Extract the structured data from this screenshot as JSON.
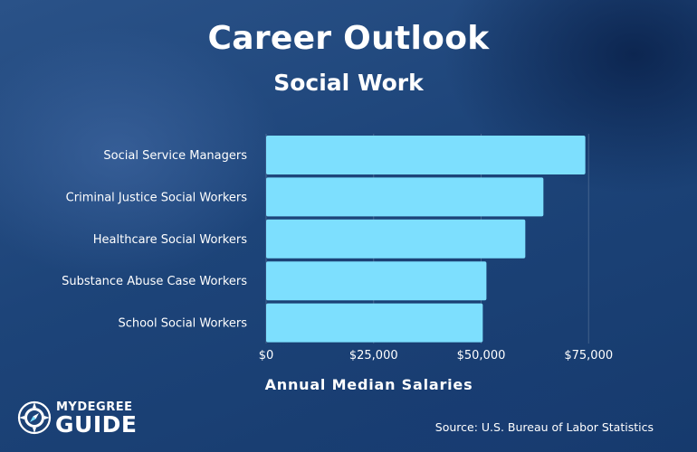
{
  "chart_data": {
    "type": "bar",
    "orientation": "horizontal",
    "title": "Career Outlook",
    "subtitle": "Social Work",
    "categories": [
      "Social Service Managers",
      "Criminal Justice Social Workers",
      "Healthcare Social Workers",
      "Substance Abuse Case Workers",
      "School Social Workers"
    ],
    "values": [
      74240,
      64490,
      60280,
      51240,
      50390
    ],
    "xlabel": "Annual Median Salaries",
    "ylabel": "",
    "xlim": [
      0,
      80000
    ],
    "ticks": [
      {
        "value": 0,
        "label": "$0"
      },
      {
        "value": 25000,
        "label": "$25,000"
      },
      {
        "value": 50000,
        "label": "$50,000"
      },
      {
        "value": 75000,
        "label": "$75,000"
      }
    ],
    "grid": true,
    "bar_color": "#7ddffe"
  },
  "source": "Source: U.S. Bureau of Labor Statistics",
  "logo": {
    "line1": "MYDEGREE",
    "line2": "GUIDE",
    "icon": "compass-icon"
  },
  "colors": {
    "background": "#1d4479",
    "bar": "#7ddffe"
  }
}
